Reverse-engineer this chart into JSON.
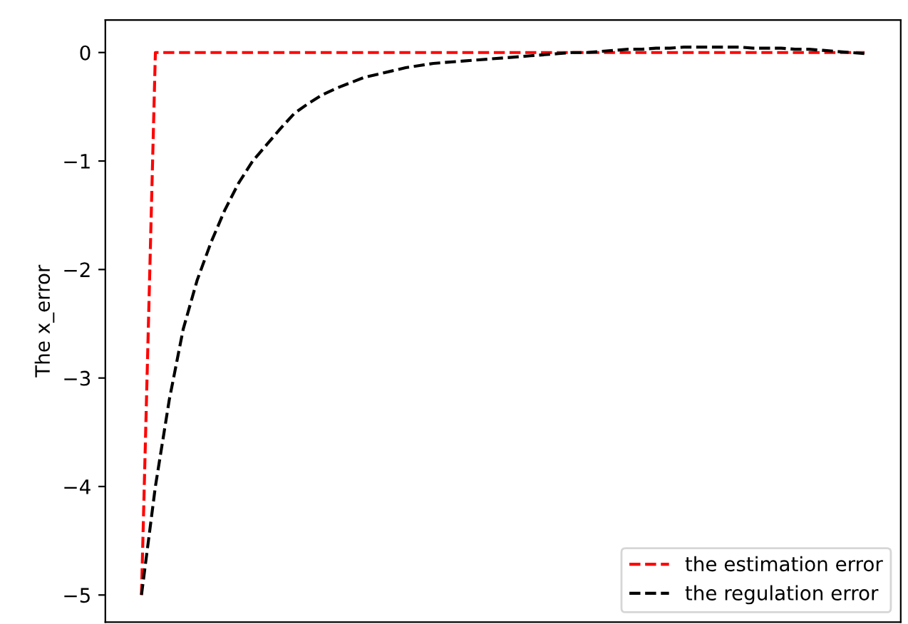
{
  "chart_data": {
    "type": "line",
    "ylabel": "The x_error",
    "categories": [
      null,
      null,
      null,
      null,
      null,
      null,
      null,
      null,
      null,
      null,
      null,
      null,
      null,
      null,
      null,
      null,
      null,
      null,
      null,
      null,
      null,
      null,
      null,
      null,
      null,
      null,
      null,
      null,
      null,
      null,
      null,
      null,
      null,
      null,
      null,
      null,
      null,
      null,
      null,
      null,
      null,
      null,
      null,
      null,
      null,
      null,
      null,
      null,
      null,
      null,
      null,
      null,
      null
    ],
    "series": [
      {
        "name": "the estimation error",
        "color": "#ff0000",
        "values": [
          -5,
          0,
          0,
          0,
          0,
          0,
          0,
          0,
          0,
          0,
          0,
          0,
          0,
          0,
          0,
          0,
          0,
          0,
          0,
          0,
          0,
          0,
          0,
          0,
          0,
          0,
          0,
          0,
          0,
          0,
          0,
          0,
          0,
          0,
          0,
          0,
          0,
          0,
          0,
          0,
          0,
          0,
          0,
          0,
          0,
          0,
          0,
          0,
          0,
          0,
          0,
          0,
          0
        ]
      },
      {
        "name": "the regulation error",
        "color": "#000000",
        "values": [
          -5,
          -4,
          -3.2,
          -2.55,
          -2.1,
          -1.75,
          -1.45,
          -1.2,
          -1.0,
          -0.85,
          -0.7,
          -0.56,
          -0.47,
          -0.39,
          -0.33,
          -0.28,
          -0.23,
          -0.2,
          -0.17,
          -0.14,
          -0.12,
          -0.1,
          -0.09,
          -0.08,
          -0.07,
          -0.06,
          -0.05,
          -0.04,
          -0.03,
          -0.02,
          -0.01,
          0,
          0,
          0.01,
          0.02,
          0.03,
          0.03,
          0.04,
          0.04,
          0.05,
          0.05,
          0.05,
          0.05,
          0.05,
          0.04,
          0.04,
          0.04,
          0.03,
          0.03,
          0.02,
          0.01,
          0,
          -0.01
        ]
      }
    ],
    "ylim": [
      -5.25,
      0.3
    ],
    "yticks": [
      {
        "value": 0,
        "label": "0"
      },
      {
        "value": -1,
        "label": "−1"
      },
      {
        "value": -2,
        "label": "−2"
      },
      {
        "value": -3,
        "label": "−3"
      },
      {
        "value": -4,
        "label": "−4"
      },
      {
        "value": -5,
        "label": "−5"
      }
    ],
    "tick_labels": "y",
    "legend": "lower right",
    "line_style": "dashed",
    "marker": "none",
    "grid": false
  }
}
